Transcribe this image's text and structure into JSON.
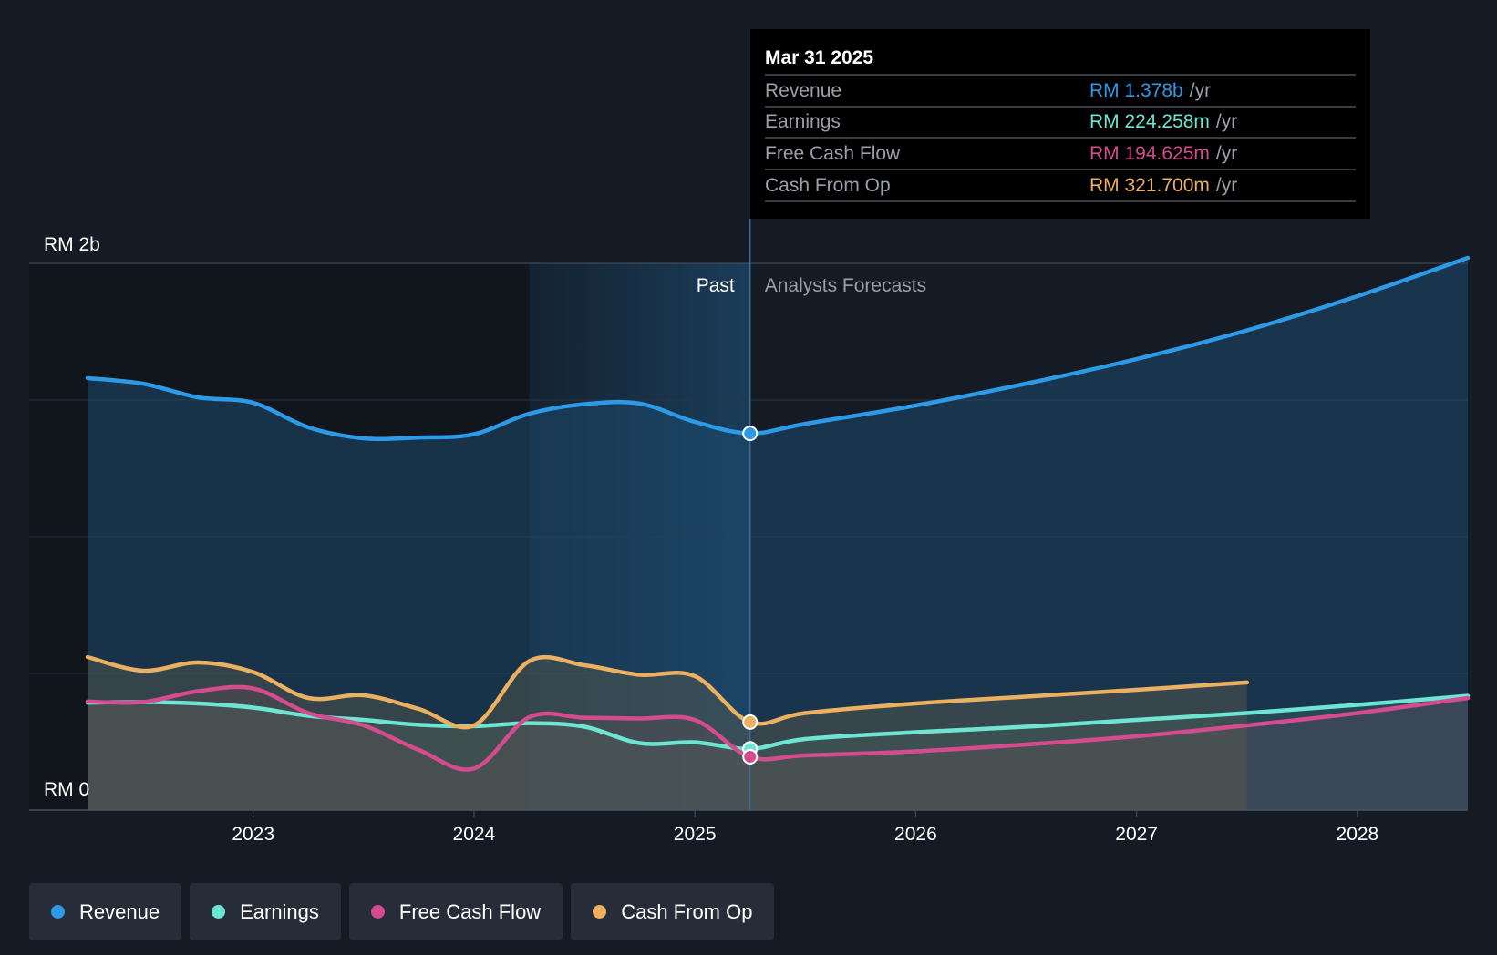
{
  "tooltip": {
    "date": "Mar 31 2025",
    "rows": [
      {
        "label": "Revenue",
        "value": "RM 1.378b",
        "unit": "/yr",
        "color": "#2d9ae8"
      },
      {
        "label": "Earnings",
        "value": "RM 224.258m",
        "unit": "/yr",
        "color": "#6ee5d2"
      },
      {
        "label": "Free Cash Flow",
        "value": "RM 194.625m",
        "unit": "/yr",
        "color": "#d44c8e"
      },
      {
        "label": "Cash From Op",
        "value": "RM 321.700m",
        "unit": "/yr",
        "color": "#ebb060"
      }
    ]
  },
  "sections": {
    "past": "Past",
    "forecast": "Analysts Forecasts"
  },
  "legend": [
    {
      "label": "Revenue",
      "color": "#2d9ae8"
    },
    {
      "label": "Earnings",
      "color": "#6ee5d2"
    },
    {
      "label": "Free Cash Flow",
      "color": "#d44c8e"
    },
    {
      "label": "Cash From Op",
      "color": "#ebb060"
    }
  ],
  "chart_data": {
    "type": "line",
    "title": "",
    "xlabel": "",
    "ylabel": "",
    "unit": "RM",
    "ylim": [
      0,
      2000
    ],
    "xlim": [
      2022.25,
      2028.5
    ],
    "y_tick_labels": [
      "RM 2b",
      "RM 0"
    ],
    "x_ticks": [
      2023,
      2024,
      2025,
      2026,
      2027,
      2028
    ],
    "x_tick_labels": [
      "2023",
      "2024",
      "2025",
      "2026",
      "2027",
      "2028"
    ],
    "past_end": 2025.25,
    "highlight_start": 2024.25,
    "series": [
      {
        "name": "Revenue",
        "color": "#2d9ae8",
        "points": [
          [
            2022.25,
            1580
          ],
          [
            2022.5,
            1560
          ],
          [
            2022.75,
            1510
          ],
          [
            2023,
            1490
          ],
          [
            2023.25,
            1400
          ],
          [
            2023.5,
            1360
          ],
          [
            2023.75,
            1363
          ],
          [
            2024,
            1375
          ],
          [
            2024.25,
            1450
          ],
          [
            2024.5,
            1485
          ],
          [
            2024.75,
            1487
          ],
          [
            2025,
            1420
          ],
          [
            2025.25,
            1378
          ],
          [
            2025.5,
            1413
          ],
          [
            2026,
            1480
          ],
          [
            2026.5,
            1560
          ],
          [
            2027,
            1650
          ],
          [
            2027.5,
            1755
          ],
          [
            2028,
            1880
          ],
          [
            2028.5,
            2020
          ]
        ]
      },
      {
        "name": "Earnings",
        "color": "#6ee5d2",
        "points": [
          [
            2022.25,
            393
          ],
          [
            2022.5,
            395
          ],
          [
            2022.75,
            390
          ],
          [
            2023,
            375
          ],
          [
            2023.25,
            345
          ],
          [
            2023.5,
            330
          ],
          [
            2023.75,
            312
          ],
          [
            2024,
            307
          ],
          [
            2024.25,
            318
          ],
          [
            2024.5,
            305
          ],
          [
            2024.75,
            245
          ],
          [
            2025,
            248
          ],
          [
            2025.25,
            224
          ],
          [
            2025.5,
            260
          ],
          [
            2026,
            285
          ],
          [
            2026.5,
            305
          ],
          [
            2027,
            330
          ],
          [
            2027.5,
            355
          ],
          [
            2028,
            385
          ],
          [
            2028.5,
            418
          ]
        ]
      },
      {
        "name": "Free Cash Flow",
        "color": "#d44c8e",
        "points": [
          [
            2022.25,
            397
          ],
          [
            2022.5,
            395
          ],
          [
            2022.75,
            435
          ],
          [
            2023,
            445
          ],
          [
            2023.25,
            355
          ],
          [
            2023.5,
            310
          ],
          [
            2023.75,
            220
          ],
          [
            2024,
            152
          ],
          [
            2024.25,
            340
          ],
          [
            2024.5,
            338
          ],
          [
            2024.75,
            335
          ],
          [
            2025,
            330
          ],
          [
            2025.25,
            195
          ],
          [
            2025.5,
            200
          ],
          [
            2026,
            215
          ],
          [
            2026.5,
            240
          ],
          [
            2027,
            270
          ],
          [
            2027.5,
            310
          ],
          [
            2028,
            355
          ],
          [
            2028.5,
            410
          ]
        ]
      },
      {
        "name": "Cash From Op",
        "color": "#ebb060",
        "points": [
          [
            2022.25,
            560
          ],
          [
            2022.5,
            510
          ],
          [
            2022.75,
            540
          ],
          [
            2023,
            505
          ],
          [
            2023.25,
            410
          ],
          [
            2023.5,
            420
          ],
          [
            2023.75,
            370
          ],
          [
            2024,
            310
          ],
          [
            2024.25,
            545
          ],
          [
            2024.5,
            530
          ],
          [
            2024.75,
            495
          ],
          [
            2025,
            490
          ],
          [
            2025.25,
            322
          ],
          [
            2025.5,
            355
          ],
          [
            2026,
            390
          ],
          [
            2026.5,
            415
          ],
          [
            2027,
            440
          ],
          [
            2027.5,
            467
          ]
        ]
      }
    ]
  }
}
